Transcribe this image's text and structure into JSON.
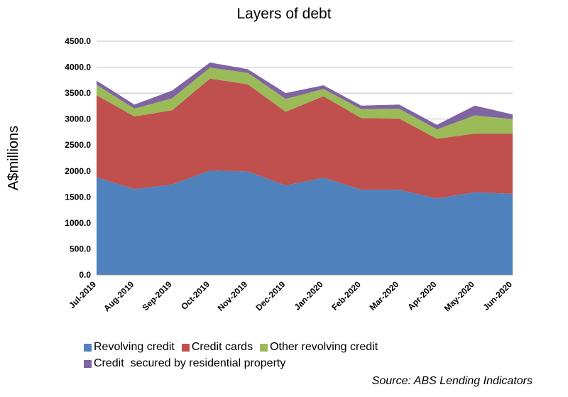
{
  "chart_data": {
    "type": "area",
    "stacked": true,
    "title": "Layers of debt",
    "xlabel": "",
    "ylabel": "A$millions",
    "ylim": [
      0,
      4500
    ],
    "yticks": [
      "0.0",
      "500.0",
      "1000.0",
      "1500.0",
      "2000.0",
      "2500.0",
      "3000.0",
      "3500.0",
      "4000.0",
      "4500.0"
    ],
    "grid": true,
    "legend_position": "bottom",
    "categories": [
      "Jul-2019",
      "Aug-2019",
      "Sep-2019",
      "Oct-2019",
      "Nov-2019",
      "Dec-2019",
      "Jan-2020",
      "Feb-2020",
      "Mar-2020",
      "Apr-2020",
      "May-2020",
      "Jun-2020"
    ],
    "series": [
      {
        "name": "Revolving credit",
        "color": "#4f81bd",
        "values": [
          1880,
          1650,
          1740,
          2010,
          1990,
          1720,
          1870,
          1640,
          1640,
          1470,
          1590,
          1560
        ]
      },
      {
        "name": "Credit cards",
        "color": "#c0504d",
        "values": [
          1580,
          1400,
          1430,
          1770,
          1680,
          1420,
          1570,
          1380,
          1370,
          1150,
          1130,
          1160
        ]
      },
      {
        "name": "Other revolving credit",
        "color": "#9bbb59",
        "values": [
          200,
          150,
          230,
          210,
          220,
          250,
          140,
          170,
          190,
          180,
          350,
          280
        ]
      },
      {
        "name": "Credit  secured by residential property",
        "color": "#8064a2",
        "values": [
          80,
          80,
          150,
          100,
          70,
          110,
          70,
          70,
          80,
          90,
          190,
          90
        ]
      }
    ],
    "source": "Source: ABS Lending Indicators"
  }
}
